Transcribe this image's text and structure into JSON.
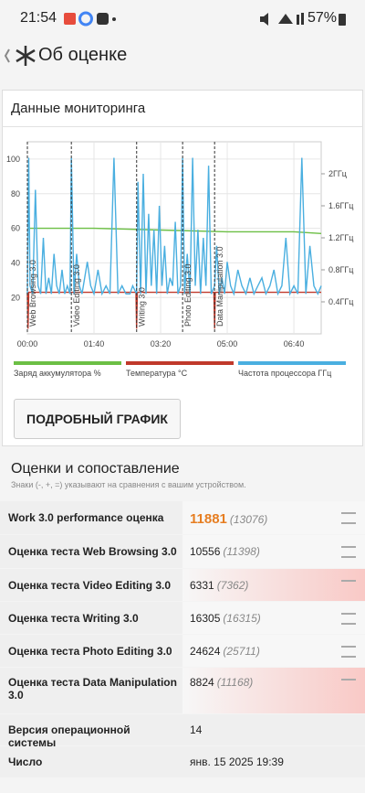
{
  "status_bar": {
    "time": "21:54",
    "battery": "57%"
  },
  "header": {
    "title": "Об оценке"
  },
  "monitoring": {
    "title": "Данные мониторинга",
    "chart_data": {
      "type": "line",
      "xlim": [
        0,
        441
      ],
      "xticks": [
        {
          "value": 0,
          "label": "00:00"
        },
        {
          "value": 100,
          "label": "01:40"
        },
        {
          "value": 200,
          "label": "03:20"
        },
        {
          "value": 300,
          "label": "05:00"
        },
        {
          "value": 400,
          "label": "06:40"
        }
      ],
      "ylim": [
        -1,
        110
      ],
      "yticks": [
        20,
        40,
        60,
        80,
        100
      ],
      "y2lim": [
        0,
        2.4
      ],
      "y2ticks": [
        {
          "value": 0.4,
          "label": "0.4ГГц"
        },
        {
          "value": 0.8,
          "label": "0.8ГГц"
        },
        {
          "value": 1.2,
          "label": "1.2ГГц"
        },
        {
          "value": 1.6,
          "label": "1.6ГГц"
        },
        {
          "value": 2.0,
          "label": "2ГГц"
        }
      ],
      "grid": true,
      "markers": [
        {
          "x": 0,
          "label": "Web Browsing 3.0"
        },
        {
          "x": 66,
          "label": "Video Editing 3.0"
        },
        {
          "x": 164,
          "label": "Writing 3.0"
        },
        {
          "x": 233,
          "label": "Photo Editing 3.0"
        },
        {
          "x": 281,
          "label": "Data Manipulation 3.0"
        }
      ],
      "series": [
        {
          "name": "Заряд аккумулятора %",
          "color": "#6cbf45",
          "x": [
            0,
            100,
            200,
            300,
            400,
            441
          ],
          "values": [
            60,
            60,
            59,
            58,
            58,
            57
          ]
        },
        {
          "name": "Температура °C",
          "color": "#c0392b",
          "x": [
            0,
            1,
            2,
            163,
            164,
            165,
            280,
            281,
            282,
            441
          ],
          "values": [
            23,
            2,
            23,
            23,
            2,
            23,
            23,
            2,
            23,
            23
          ]
        },
        {
          "name": "Частота процессора ГГц",
          "color": "#4aafe0",
          "axis": "y2",
          "x": [
            0,
            2,
            4,
            8,
            12,
            16,
            20,
            24,
            28,
            32,
            36,
            40,
            44,
            48,
            52,
            56,
            60,
            64,
            66,
            70,
            74,
            78,
            82,
            86,
            90,
            95,
            100,
            106,
            112,
            118,
            124,
            130,
            136,
            142,
            148,
            154,
            158,
            164,
            166,
            170,
            174,
            178,
            182,
            186,
            190,
            194,
            198,
            202,
            206,
            210,
            214,
            218,
            222,
            226,
            230,
            233,
            236,
            240,
            244,
            248,
            252,
            256,
            260,
            264,
            268,
            272,
            276,
            281,
            284,
            288,
            292,
            296,
            300,
            305,
            310,
            316,
            322,
            328,
            334,
            340,
            346,
            352,
            358,
            364,
            370,
            376,
            382,
            388,
            394,
            400,
            406,
            412,
            418,
            424,
            430,
            436,
            441
          ],
          "values": [
            0.5,
            2.2,
            0.6,
            0.5,
            1.8,
            0.6,
            0.5,
            1.2,
            0.5,
            0.7,
            0.5,
            1.0,
            0.6,
            0.5,
            0.8,
            0.5,
            0.6,
            0.5,
            2.2,
            0.5,
            1.0,
            0.6,
            0.5,
            0.7,
            0.9,
            0.6,
            0.5,
            0.8,
            0.5,
            0.6,
            0.5,
            2.2,
            0.5,
            0.6,
            0.5,
            0.5,
            0.6,
            0.5,
            1.9,
            0.5,
            2.0,
            0.5,
            1.5,
            0.6,
            1.3,
            0.5,
            1.6,
            0.6,
            1.1,
            0.5,
            0.7,
            0.6,
            1.4,
            0.5,
            0.6,
            2.2,
            0.5,
            1.0,
            0.5,
            2.2,
            0.6,
            1.3,
            0.5,
            1.2,
            0.6,
            2.1,
            0.5,
            0.6,
            1.1,
            0.5,
            0.7,
            0.5,
            0.9,
            0.6,
            0.5,
            0.8,
            0.6,
            0.5,
            0.7,
            0.5,
            0.6,
            0.7,
            0.5,
            0.6,
            0.8,
            0.5,
            0.6,
            1.2,
            0.5,
            0.6,
            0.5,
            2.2,
            0.5,
            1.1,
            0.6,
            0.5,
            0.6
          ]
        }
      ]
    },
    "button": "ПОДРОБНЫЙ ГРАФИК"
  },
  "scores": {
    "title": "Оценки и сопоставление",
    "note": "Знаки (-, +, =) указывают на сравнения с вашим устройством.",
    "rows": [
      {
        "label": "Work 3.0 performance оценка",
        "value": "11881",
        "compare": "(13076)",
        "status": "equal",
        "highlight": true
      },
      {
        "label": "Оценка теста Web Browsing 3.0",
        "value": "10556",
        "compare": "(11398)",
        "status": "equal"
      },
      {
        "label": "Оценка теста Video Editing 3.0",
        "value": "6331",
        "compare": "(7362)",
        "status": "worse"
      },
      {
        "label": "Оценка теста Writing 3.0",
        "value": "16305",
        "compare": "(16315)",
        "status": "equal"
      },
      {
        "label": "Оценка теста Photo Editing 3.0",
        "value": "24624",
        "compare": "(25711)",
        "status": "equal"
      },
      {
        "label": "Оценка теста Data Manipulation 3.0",
        "value": "8824",
        "compare": "(11168)",
        "status": "worse"
      },
      {
        "label": "Версия операционной системы",
        "value": "14"
      },
      {
        "label": "Число",
        "value": "янв. 15 2025 19:39"
      }
    ]
  }
}
